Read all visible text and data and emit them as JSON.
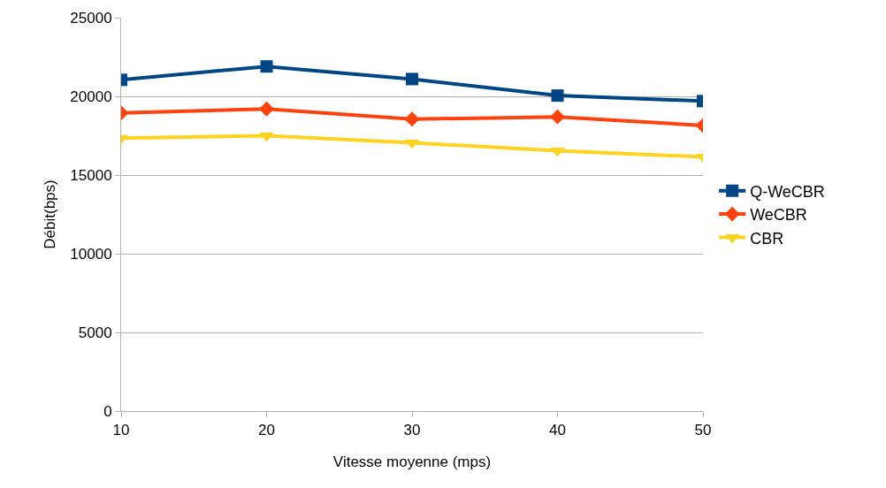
{
  "chart_data": {
    "type": "line",
    "xlabel": "Vitesse moyenne (mps)",
    "ylabel": "Débit(bps)",
    "x": [
      10,
      20,
      30,
      40,
      50
    ],
    "xlim": [
      10,
      50
    ],
    "xticks": [
      10,
      20,
      30,
      40,
      50
    ],
    "ylim": [
      0,
      25000
    ],
    "yticks": [
      0,
      5000,
      10000,
      15000,
      20000,
      25000
    ],
    "grid": "y",
    "legend": "right",
    "series": [
      {
        "name": "Q-WeCBR",
        "color": "#004586",
        "marker": "square",
        "values": [
          21050,
          21900,
          21100,
          20050,
          19700
        ]
      },
      {
        "name": "WeCBR",
        "color": "#ff420e",
        "marker": "diamond",
        "values": [
          18950,
          19200,
          18550,
          18700,
          18150
        ]
      },
      {
        "name": "CBR",
        "color": "#ffd320",
        "marker": "triangle",
        "values": [
          17350,
          17500,
          17050,
          16550,
          16150
        ]
      }
    ]
  }
}
